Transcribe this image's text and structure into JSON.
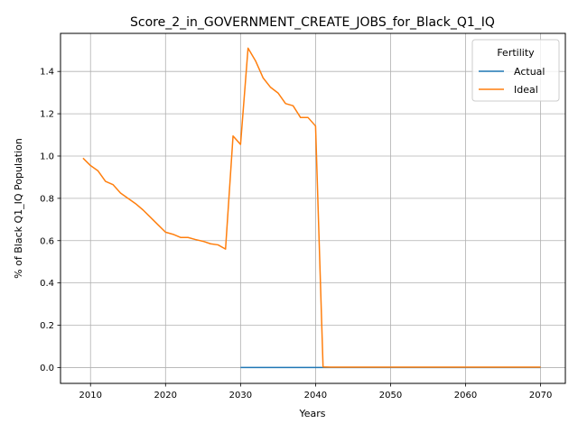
{
  "chart_data": {
    "type": "line",
    "title": "Score_2_in_GOVERNMENT_CREATE_JOBS_for_Black_Q1_IQ",
    "xlabel": "Years",
    "ylabel": "% of Black Q1_IQ Population",
    "xlim": [
      2006,
      2073.3
    ],
    "ylim": [
      -0.075,
      1.58
    ],
    "x_ticks": [
      2010,
      2020,
      2030,
      2040,
      2050,
      2060,
      2070
    ],
    "y_ticks": [
      0.0,
      0.2,
      0.4,
      0.6,
      0.8,
      1.0,
      1.2,
      1.4
    ],
    "x_tick_labels": [
      "2010",
      "2020",
      "2030",
      "2040",
      "2050",
      "2060",
      "2070"
    ],
    "y_tick_labels": [
      "0.0",
      "0.2",
      "0.4",
      "0.6",
      "0.8",
      "1.0",
      "1.2",
      "1.4"
    ],
    "grid": true,
    "legend": {
      "title": "Fertility",
      "placement": "top-right"
    },
    "series": [
      {
        "name": "Actual",
        "color": "#1f77b4",
        "x": [
          2030,
          2031,
          2032,
          2033,
          2034,
          2035,
          2036,
          2037,
          2038,
          2039,
          2040,
          2041,
          2042,
          2043,
          2044,
          2045,
          2046,
          2047,
          2048,
          2049,
          2050,
          2051,
          2052,
          2053,
          2054,
          2055,
          2056,
          2057,
          2058,
          2059,
          2060,
          2061,
          2062,
          2063,
          2064,
          2065,
          2066,
          2067,
          2068,
          2069,
          2070
        ],
        "y": [
          0,
          0,
          0,
          0,
          0,
          0,
          0,
          0,
          0,
          0,
          0,
          0,
          0,
          0,
          0,
          0,
          0,
          0,
          0,
          0,
          0,
          0,
          0,
          0,
          0,
          0,
          0,
          0,
          0,
          0,
          0,
          0,
          0,
          0,
          0,
          0,
          0,
          0,
          0,
          0,
          0
        ]
      },
      {
        "name": "Ideal",
        "color": "#ff7f0e",
        "x": [
          2009,
          2010,
          2011,
          2012,
          2013,
          2014,
          2015,
          2016,
          2017,
          2018,
          2019,
          2020,
          2021,
          2022,
          2023,
          2024,
          2025,
          2026,
          2027,
          2028,
          2029,
          2030,
          2031,
          2032,
          2033,
          2034,
          2035,
          2036,
          2037,
          2038,
          2039,
          2040,
          2041,
          2042,
          2043,
          2044,
          2045,
          2046,
          2047,
          2048,
          2049,
          2050,
          2051,
          2052,
          2053,
          2054,
          2055,
          2056,
          2057,
          2058,
          2059,
          2060,
          2061,
          2062,
          2063,
          2064,
          2065,
          2066,
          2067,
          2068,
          2069,
          2070
        ],
        "y": [
          0.99,
          0.955,
          0.93,
          0.88,
          0.865,
          0.825,
          0.8,
          0.775,
          0.745,
          0.71,
          0.675,
          0.64,
          0.63,
          0.615,
          0.615,
          0.605,
          0.597,
          0.585,
          0.58,
          0.56,
          1.095,
          1.055,
          1.51,
          1.45,
          1.37,
          1.325,
          1.298,
          1.248,
          1.238,
          1.182,
          1.182,
          1.142,
          0.003,
          0.002,
          0.002,
          0.002,
          0.002,
          0.002,
          0.002,
          0.002,
          0.002,
          0.002,
          0.002,
          0.002,
          0.002,
          0.002,
          0.002,
          0.002,
          0.002,
          0.002,
          0.002,
          0.002,
          0.002,
          0.002,
          0.002,
          0.002,
          0.002,
          0.002,
          0.002,
          0.002,
          0.002,
          0.002
        ]
      }
    ]
  }
}
